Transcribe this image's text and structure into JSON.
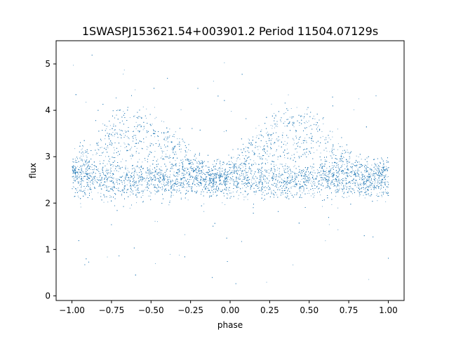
{
  "chart_data": {
    "type": "scatter",
    "title": "1SWASPJ153621.54+003901.2 Period 11504.07129s",
    "xlabel": "phase",
    "ylabel": "flux",
    "xlim": [
      -1.1,
      1.1
    ],
    "ylim": [
      -0.1,
      5.5
    ],
    "x_ticks": [
      -1.0,
      -0.75,
      -0.5,
      -0.25,
      0.0,
      0.25,
      0.5,
      0.75,
      1.0
    ],
    "x_tick_labels": [
      "−1.00",
      "−0.75",
      "−0.50",
      "−0.25",
      "0.00",
      "0.25",
      "0.50",
      "0.75",
      "1.00"
    ],
    "y_ticks": [
      0,
      1,
      2,
      3,
      4,
      5
    ],
    "y_tick_labels": [
      "0",
      "1",
      "2",
      "3",
      "4",
      "5"
    ],
    "grid": false,
    "marker_color": "#1f77b4",
    "series": [
      {
        "description_free": true,
        "components": [
          {
            "kind": "baseline_band",
            "center": 2.5,
            "spread": 0.22,
            "x_range": [
              -1.0,
              1.0
            ]
          },
          {
            "kind": "hump",
            "peak_x": [
              -0.62,
              0.38
            ],
            "peak_y": 4.0,
            "rise_start": -0.17,
            "fall_end": 0.4
          },
          {
            "kind": "outliers",
            "y_range": [
              0.0,
              5.2
            ]
          }
        ]
      }
    ]
  }
}
